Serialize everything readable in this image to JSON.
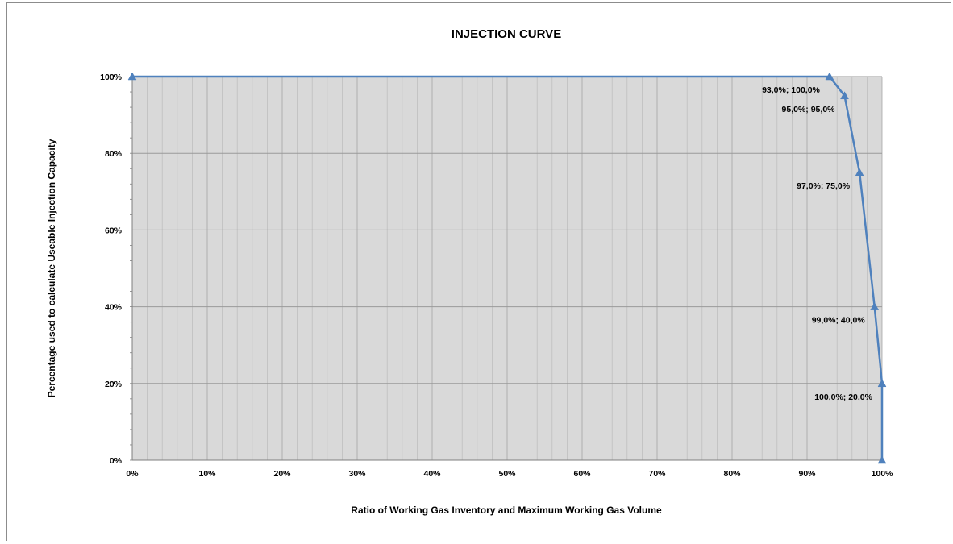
{
  "chart_data": {
    "type": "line",
    "title": "INJECTION CURVE",
    "xlabel": "Ratio of Working Gas Inventory and Maximum Working Gas Volume",
    "ylabel": "Percentage used to calculate Useable Injection Capacity",
    "xlim": [
      0,
      100
    ],
    "ylim": [
      0,
      100
    ],
    "x_ticks": [
      "0%",
      "10%",
      "20%",
      "30%",
      "40%",
      "50%",
      "60%",
      "70%",
      "80%",
      "90%",
      "100%"
    ],
    "y_ticks": [
      "0%",
      "20%",
      "40%",
      "60%",
      "80%",
      "100%"
    ],
    "grid": true,
    "marker": "triangle",
    "series": [
      {
        "color": "#4f81bd",
        "points": [
          {
            "x": 0,
            "y": 100,
            "label": ""
          },
          {
            "x": 93,
            "y": 100,
            "label": "93,0%; 100,0%"
          },
          {
            "x": 95,
            "y": 95,
            "label": "95,0%; 95,0%"
          },
          {
            "x": 97,
            "y": 75,
            "label": "97,0%; 75,0%"
          },
          {
            "x": 99,
            "y": 40,
            "label": "99,0%; 40,0%"
          },
          {
            "x": 100,
            "y": 20,
            "label": "100,0%; 20,0%"
          },
          {
            "x": 100,
            "y": 0,
            "label": ""
          }
        ]
      }
    ],
    "colors": {
      "plot_bg": "#d9d9d9",
      "grid_major": "#a6a6a6",
      "grid_minor": "#bfbfbf",
      "line": "#4f81bd"
    }
  }
}
